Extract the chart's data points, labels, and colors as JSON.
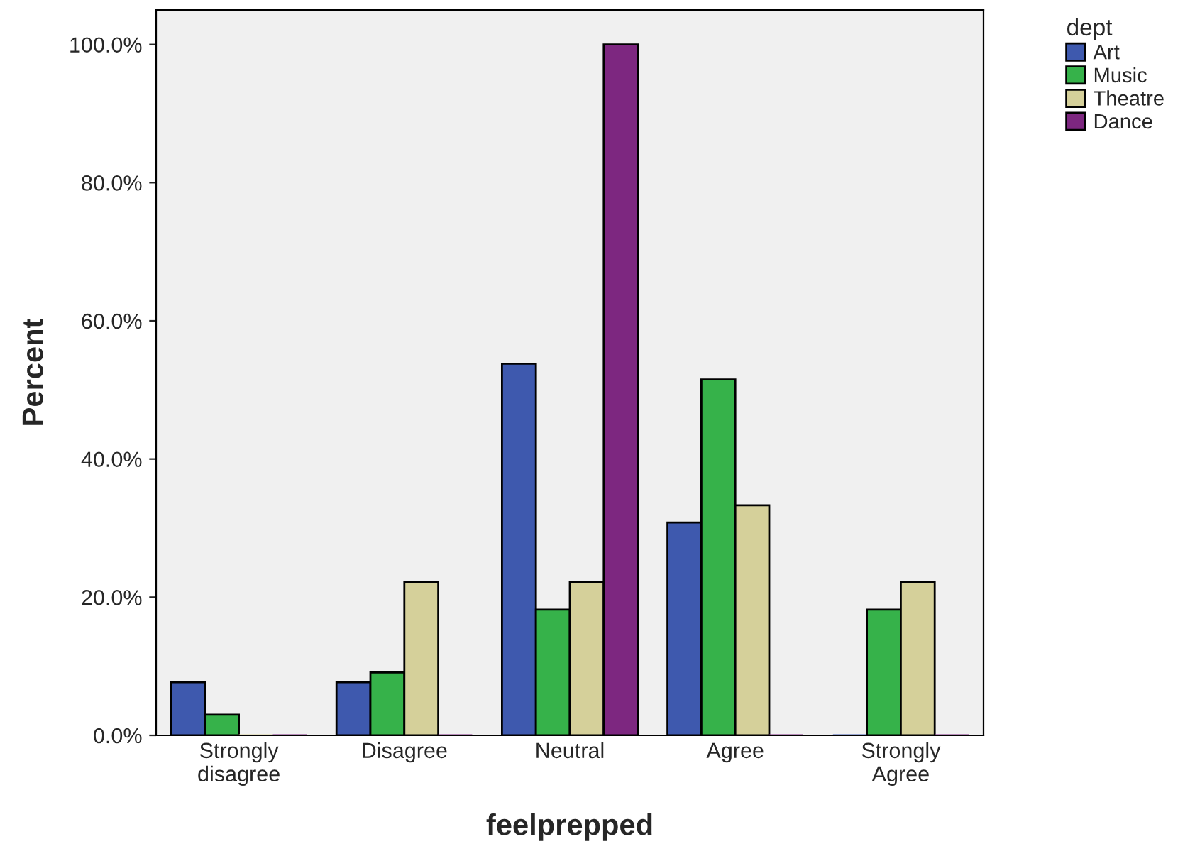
{
  "chart_data": {
    "type": "bar",
    "xlabel": "feelprepped",
    "ylabel": "Percent",
    "legend_title": "dept",
    "categories": [
      "Strongly\ndisagree",
      "Disagree",
      "Neutral",
      "Agree",
      "Strongly\nAgree"
    ],
    "series": [
      {
        "name": "Art",
        "color": "#3e59ae",
        "values": [
          7.7,
          7.7,
          53.8,
          30.8,
          0
        ]
      },
      {
        "name": "Music",
        "color": "#36b24a",
        "values": [
          3.0,
          9.1,
          18.2,
          51.5,
          18.2
        ]
      },
      {
        "name": "Theatre",
        "color": "#d5d09a",
        "values": [
          0,
          22.2,
          22.2,
          33.3,
          22.2
        ]
      },
      {
        "name": "Dance",
        "color": "#7d2780",
        "values": [
          0,
          0,
          100,
          0,
          0
        ]
      }
    ],
    "ylim": [
      0,
      105
    ],
    "yticks": [
      {
        "value": 0,
        "label": "0.0%"
      },
      {
        "value": 20,
        "label": "20.0%"
      },
      {
        "value": 40,
        "label": "40.0%"
      },
      {
        "value": 60,
        "label": "60.0%"
      },
      {
        "value": 80,
        "label": "80.0%"
      },
      {
        "value": 100,
        "label": "100.0%"
      }
    ],
    "grid": false,
    "legend": "top right"
  }
}
